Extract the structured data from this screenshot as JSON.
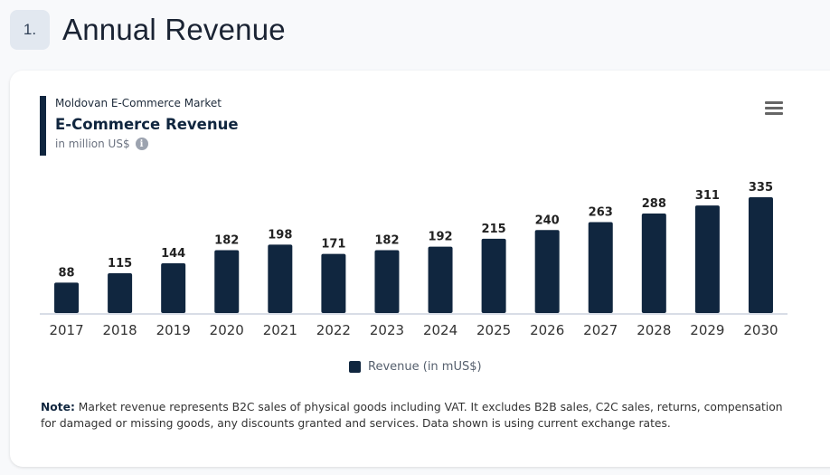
{
  "section": {
    "number": "1.",
    "title": "Annual Revenue"
  },
  "card": {
    "subtitle_top": "Moldovan E-Commerce Market",
    "title": "E-Commerce Revenue",
    "unit": "in million US$",
    "info_icon": "info-icon",
    "menu_icon": "hamburger-menu-icon"
  },
  "legend": {
    "label": "Revenue (in mUS$)",
    "color": "#10263f"
  },
  "note": {
    "label": "Note:",
    "text": " Market revenue represents B2C sales of physical goods including VAT. It excludes B2B sales, C2C sales, returns, compensation for damaged or missing goods, any discounts granted and services. Data shown is using current exchange rates."
  },
  "chart_data": {
    "type": "bar",
    "title": "E-Commerce Revenue",
    "subtitle": "Moldovan E-Commerce Market",
    "xlabel": "",
    "ylabel": "in million US$",
    "categories": [
      "2017",
      "2018",
      "2019",
      "2020",
      "2021",
      "2022",
      "2023",
      "2024",
      "2025",
      "2026",
      "2027",
      "2028",
      "2029",
      "2030"
    ],
    "series": [
      {
        "name": "Revenue (in mUS$)",
        "color": "#10263f",
        "values": [
          88,
          115,
          144,
          182,
          198,
          171,
          182,
          192,
          215,
          240,
          263,
          288,
          311,
          335
        ]
      }
    ],
    "ylim": [
      0,
      335
    ],
    "grid": false,
    "legend": "bottom-center",
    "data_labels": true
  }
}
